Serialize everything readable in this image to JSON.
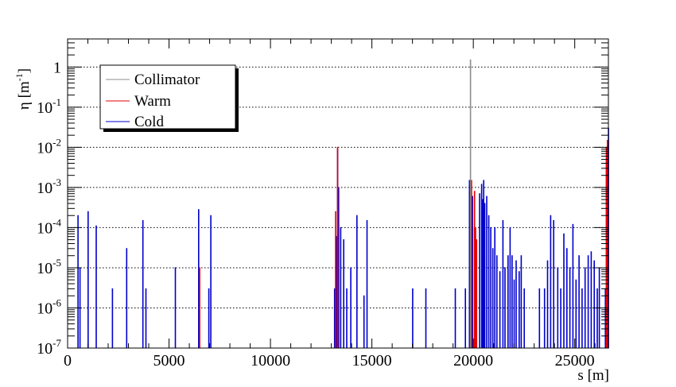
{
  "chart_data": {
    "type": "line",
    "xlabel": "s [m]",
    "ylabel_base": "η [m",
    "ylabel_exp": "-1",
    "ylabel_close": "]",
    "xlim": [
      0,
      26659
    ],
    "ylim": [
      1e-07,
      5
    ],
    "y_scale": "log",
    "grid": "horizontal dotted",
    "x_ticks": [
      0,
      5000,
      10000,
      15000,
      20000,
      25000
    ],
    "x_tick_labels": [
      "0",
      "5000",
      "10000",
      "15000",
      "20000",
      "25000"
    ],
    "y_ticks": [
      {
        "value": 1e-07,
        "base": "10",
        "exp": "-7"
      },
      {
        "value": 1e-06,
        "base": "10",
        "exp": "-6"
      },
      {
        "value": 1e-05,
        "base": "10",
        "exp": "-5"
      },
      {
        "value": 0.0001,
        "base": "10",
        "exp": "-4"
      },
      {
        "value": 0.001,
        "base": "10",
        "exp": "-3"
      },
      {
        "value": 0.01,
        "base": "10",
        "exp": "-2"
      },
      {
        "value": 0.1,
        "base": "10",
        "exp": "-1"
      },
      {
        "value": 1,
        "base": "1",
        "exp": ""
      }
    ],
    "legend_position": "top-left",
    "series": [
      {
        "name": "Collimator",
        "color": "#8c8c8c",
        "spikes": [
          [
            19850,
            1.5
          ]
        ]
      },
      {
        "name": "Warm",
        "color": "#e60000",
        "spikes": [
          [
            6500,
            1e-05
          ],
          [
            13200,
            0.00025
          ],
          [
            13300,
            0.01
          ],
          [
            19900,
            0.0015
          ],
          [
            20050,
            0.0008
          ],
          [
            20100,
            0.0001
          ],
          [
            20150,
            5e-05
          ],
          [
            26550,
            0.01
          ],
          [
            26600,
            0.015
          ]
        ]
      },
      {
        "name": "Cold",
        "color": "#0000cc",
        "spikes": [
          [
            500,
            0.0002
          ],
          [
            600,
            1e-05
          ],
          [
            1000,
            0.00025
          ],
          [
            1400,
            0.00011
          ],
          [
            2200,
            3e-06
          ],
          [
            2900,
            3e-05
          ],
          [
            3700,
            0.00015
          ],
          [
            3850,
            3e-06
          ],
          [
            5300,
            1e-05
          ],
          [
            6450,
            0.00028
          ],
          [
            6950,
            3e-06
          ],
          [
            7050,
            0.0002
          ],
          [
            13150,
            3e-06
          ],
          [
            13250,
            6e-05
          ],
          [
            13300,
            0.009
          ],
          [
            13350,
            0.001
          ],
          [
            13450,
            0.0001
          ],
          [
            13600,
            5e-05
          ],
          [
            13750,
            3e-06
          ],
          [
            13950,
            1e-05
          ],
          [
            14250,
            0.0002
          ],
          [
            14600,
            2e-06
          ],
          [
            14750,
            0.00015
          ],
          [
            17000,
            3e-06
          ],
          [
            17650,
            3e-06
          ],
          [
            19100,
            3e-06
          ],
          [
            19600,
            3e-06
          ],
          [
            19800,
            0.0015
          ],
          [
            19950,
            0.0006
          ],
          [
            20050,
            0.0001
          ],
          [
            20300,
            0.0007
          ],
          [
            20400,
            0.0012
          ],
          [
            20450,
            0.0005
          ],
          [
            20500,
            0.0015
          ],
          [
            20550,
            0.0004
          ],
          [
            20650,
            0.0006
          ],
          [
            20750,
            0.0002
          ],
          [
            20850,
            0.0001
          ],
          [
            20950,
            3e-05
          ],
          [
            21050,
            0.0001
          ],
          [
            21150,
            2e-05
          ],
          [
            21300,
            8e-06
          ],
          [
            21450,
            0.00015
          ],
          [
            21550,
            1e-05
          ],
          [
            21700,
            2e-05
          ],
          [
            21800,
            0.0001
          ],
          [
            21900,
            2e-05
          ],
          [
            22000,
            5e-06
          ],
          [
            22100,
            1.5e-05
          ],
          [
            22250,
            8e-06
          ],
          [
            22350,
            2e-05
          ],
          [
            22500,
            3e-06
          ],
          [
            23250,
            3e-06
          ],
          [
            23500,
            3e-06
          ],
          [
            23650,
            1.5e-05
          ],
          [
            23800,
            0.0002
          ],
          [
            23950,
            0.00015
          ],
          [
            24150,
            1e-05
          ],
          [
            24300,
            3e-06
          ],
          [
            24450,
            7e-05
          ],
          [
            24600,
            3e-05
          ],
          [
            24750,
            1e-05
          ],
          [
            24900,
            0.00012
          ],
          [
            25050,
            5e-06
          ],
          [
            25200,
            2e-05
          ],
          [
            25350,
            3e-06
          ],
          [
            25500,
            1e-05
          ],
          [
            25650,
            2e-05
          ],
          [
            25800,
            2.5e-05
          ],
          [
            25950,
            1.5e-05
          ],
          [
            26100,
            3e-06
          ],
          [
            26200,
            1e-05
          ],
          [
            26500,
            3e-06
          ],
          [
            26550,
            0.005
          ],
          [
            26650,
            0.03
          ]
        ]
      }
    ]
  }
}
